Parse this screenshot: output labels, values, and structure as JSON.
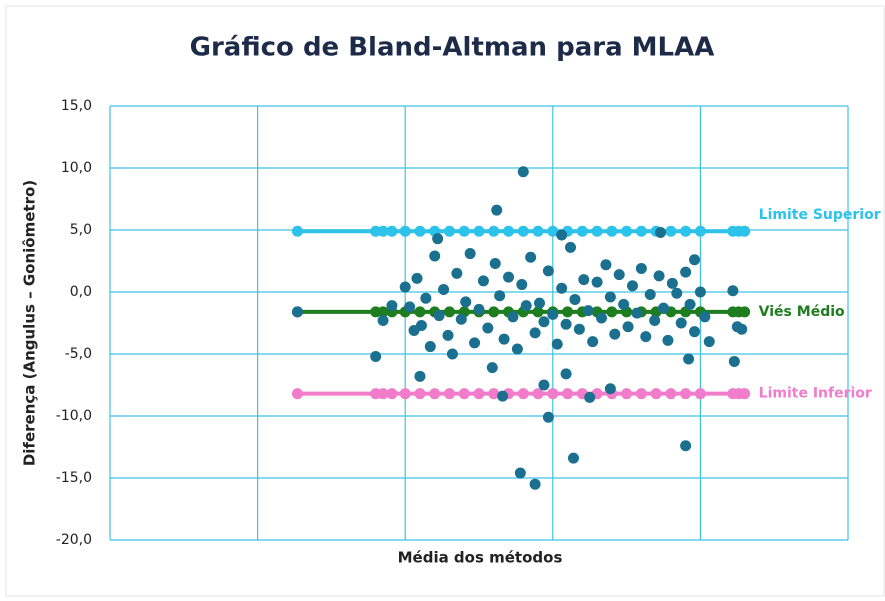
{
  "chart_data": {
    "type": "scatter",
    "title": "Gráfico de Bland-Altman para MLAA",
    "xlabel": "Média dos métodos",
    "ylabel": "Diferença (Angulus – Goniômetro)",
    "xlim": [
      0,
      5
    ],
    "xticks": [
      0,
      1,
      2,
      3,
      4,
      5
    ],
    "ylim": [
      -20,
      15
    ],
    "yticks": [
      {
        "value": 15,
        "label": "15,0"
      },
      {
        "value": 10,
        "label": "10,0"
      },
      {
        "value": 5,
        "label": "5,0"
      },
      {
        "value": 0,
        "label": "0,0"
      },
      {
        "value": -5,
        "label": "-5,0"
      },
      {
        "value": -10,
        "label": "-10,0"
      },
      {
        "value": -15,
        "label": "-15,0"
      },
      {
        "value": -20,
        "label": "-20,0"
      }
    ],
    "grid": true,
    "series": [
      {
        "type": "scatter",
        "color": "#1b6f8f",
        "x": [
          1.27,
          1.8,
          1.85,
          1.91,
          2.8,
          2.62,
          2.78,
          2.88,
          2.97,
          3.14,
          3.9,
          2.94,
          3.09,
          3.39,
          3.25,
          2.66,
          2.1,
          2.22,
          3.06,
          3.73,
          4.23,
          4.22,
          4.28,
          4.25,
          3.92,
          3.96,
          2.0,
          2.03,
          2.06,
          2.08,
          2.11,
          2.14,
          2.17,
          2.2,
          2.23,
          2.26,
          2.29,
          2.32,
          2.35,
          2.38,
          2.41,
          2.44,
          2.47,
          2.5,
          2.53,
          2.56,
          2.59,
          2.61,
          2.64,
          2.67,
          2.7,
          2.73,
          2.76,
          2.79,
          2.82,
          2.85,
          2.88,
          2.91,
          2.94,
          2.97,
          3.0,
          3.03,
          3.06,
          3.09,
          3.12,
          3.15,
          3.18,
          3.21,
          3.24,
          3.27,
          3.3,
          3.33,
          3.36,
          3.39,
          3.42,
          3.45,
          3.48,
          3.51,
          3.54,
          3.57,
          3.6,
          3.63,
          3.66,
          3.69,
          3.72,
          3.75,
          3.78,
          3.81,
          3.84,
          3.87,
          3.9,
          3.93,
          3.96,
          4.0,
          4.03,
          4.06
        ],
        "values": [
          -1.6,
          -5.2,
          -2.3,
          -1.1,
          9.7,
          6.6,
          -14.6,
          -15.5,
          -10.1,
          -13.4,
          -12.4,
          -7.5,
          -6.6,
          -7.8,
          -8.5,
          -8.4,
          -6.8,
          4.3,
          4.6,
          4.8,
          -5.6,
          0.1,
          -3.0,
          -2.8,
          -5.4,
          2.6,
          0.4,
          -1.2,
          -3.1,
          1.1,
          -2.7,
          -0.5,
          -4.4,
          2.9,
          -1.9,
          0.2,
          -3.5,
          -5.0,
          1.5,
          -2.2,
          -0.8,
          3.1,
          -4.1,
          -1.4,
          0.9,
          -2.9,
          -6.1,
          2.3,
          -0.3,
          -3.8,
          1.2,
          -2.0,
          -4.6,
          0.6,
          -1.1,
          2.8,
          -3.3,
          -0.9,
          -2.4,
          1.7,
          -1.8,
          -4.2,
          0.3,
          -2.6,
          3.6,
          -0.6,
          -3.0,
          1.0,
          -1.5,
          -4.0,
          0.8,
          -2.1,
          2.2,
          -0.4,
          -3.4,
          1.4,
          -1.0,
          -2.8,
          0.5,
          -1.7,
          1.9,
          -3.6,
          -0.2,
          -2.3,
          1.3,
          -1.3,
          -3.9,
          0.7,
          -0.1,
          -2.5,
          1.6,
          -1.0,
          -3.2,
          0.0,
          -2.0,
          -4.0
        ]
      },
      {
        "type": "line",
        "name": "Limite Superior",
        "color": "#2cc2ea",
        "x": [
          1.27,
          1.8,
          1.85,
          1.91,
          2.0,
          2.1,
          2.2,
          2.3,
          2.4,
          2.5,
          2.6,
          2.7,
          2.8,
          2.9,
          3.0,
          3.1,
          3.2,
          3.3,
          3.4,
          3.5,
          3.6,
          3.7,
          3.8,
          3.9,
          4.0,
          4.22,
          4.26,
          4.3
        ],
        "values": [
          4.9,
          4.9,
          4.9,
          4.9,
          4.9,
          4.9,
          4.9,
          4.9,
          4.9,
          4.9,
          4.9,
          4.9,
          4.9,
          4.9,
          4.9,
          4.9,
          4.9,
          4.9,
          4.9,
          4.9,
          4.9,
          4.9,
          4.9,
          4.9,
          4.9,
          4.9,
          4.9,
          4.9
        ]
      },
      {
        "type": "line",
        "name": "Viés Médio",
        "color": "#1e7d1e",
        "x": [
          1.27,
          1.8,
          1.85,
          1.91,
          2.0,
          2.1,
          2.2,
          2.3,
          2.4,
          2.5,
          2.6,
          2.7,
          2.8,
          2.9,
          3.0,
          3.1,
          3.2,
          3.3,
          3.4,
          3.5,
          3.6,
          3.7,
          3.8,
          3.9,
          4.0,
          4.22,
          4.26,
          4.3
        ],
        "values": [
          -1.6,
          -1.6,
          -1.6,
          -1.6,
          -1.6,
          -1.6,
          -1.6,
          -1.6,
          -1.6,
          -1.6,
          -1.6,
          -1.6,
          -1.6,
          -1.6,
          -1.6,
          -1.6,
          -1.6,
          -1.6,
          -1.6,
          -1.6,
          -1.6,
          -1.6,
          -1.6,
          -1.6,
          -1.6,
          -1.6,
          -1.6,
          -1.6
        ]
      },
      {
        "type": "line",
        "name": "Limite Inferior",
        "color": "#f07ccb",
        "x": [
          1.27,
          1.8,
          1.85,
          1.91,
          2.0,
          2.1,
          2.2,
          2.3,
          2.4,
          2.5,
          2.6,
          2.7,
          2.8,
          2.9,
          3.0,
          3.1,
          3.2,
          3.3,
          3.4,
          3.5,
          3.6,
          3.7,
          3.8,
          3.9,
          4.0,
          4.22,
          4.26,
          4.3
        ],
        "values": [
          -8.2,
          -8.2,
          -8.2,
          -8.2,
          -8.2,
          -8.2,
          -8.2,
          -8.2,
          -8.2,
          -8.2,
          -8.2,
          -8.2,
          -8.2,
          -8.2,
          -8.2,
          -8.2,
          -8.2,
          -8.2,
          -8.2,
          -8.2,
          -8.2,
          -8.2,
          -8.2,
          -8.2,
          -8.2,
          -8.2,
          -8.2,
          -8.2
        ]
      }
    ]
  }
}
